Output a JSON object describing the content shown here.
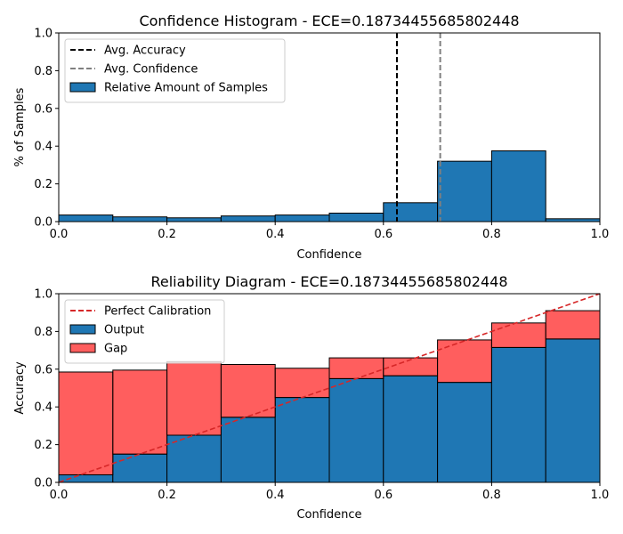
{
  "chart_data": [
    {
      "type": "bar",
      "title": "Confidence Histogram -  ECE=0.18734455685802448",
      "xlabel": "Confidence",
      "ylabel": "% of Samples",
      "xlim": [
        0,
        1
      ],
      "ylim": [
        0,
        1
      ],
      "xticks": [
        "0.0",
        "0.2",
        "0.4",
        "0.6",
        "0.8",
        "1.0"
      ],
      "yticks": [
        "0.0",
        "0.2",
        "0.4",
        "0.6",
        "0.8",
        "1.0"
      ],
      "bin_edges": [
        0,
        0.1,
        0.2,
        0.3,
        0.4,
        0.5,
        0.6,
        0.7,
        0.8,
        0.9,
        1.0
      ],
      "series": [
        {
          "name": "Relative Amount of Samples",
          "color": "#1f77b4",
          "values": [
            0.035,
            0.025,
            0.02,
            0.03,
            0.035,
            0.045,
            0.1,
            0.32,
            0.375,
            0.015
          ]
        }
      ],
      "vlines": [
        {
          "name": "Avg. Accuracy",
          "x": 0.625,
          "color": "#000000"
        },
        {
          "name": "Avg. Confidence",
          "x": 0.705,
          "color": "#808080"
        }
      ],
      "legend": "top-left"
    },
    {
      "type": "bar",
      "title": "Reliability Diagram -  ECE=0.18734455685802448",
      "xlabel": "Confidence",
      "ylabel": "Accuracy",
      "xlim": [
        0,
        1
      ],
      "ylim": [
        0,
        1
      ],
      "xticks": [
        "0.0",
        "0.2",
        "0.4",
        "0.6",
        "0.8",
        "1.0"
      ],
      "yticks": [
        "0.0",
        "0.2",
        "0.4",
        "0.6",
        "0.8",
        "1.0"
      ],
      "bin_edges": [
        0,
        0.1,
        0.2,
        0.3,
        0.4,
        0.5,
        0.6,
        0.7,
        0.8,
        0.9,
        1.0
      ],
      "series": [
        {
          "name": "Output",
          "color": "#1f77b4",
          "values": [
            0.04,
            0.15,
            0.25,
            0.345,
            0.45,
            0.55,
            0.565,
            0.53,
            0.715,
            0.76
          ]
        },
        {
          "name": "Gap",
          "color": "#ff0000",
          "bottom": [
            0.04,
            0.15,
            0.25,
            0.345,
            0.45,
            0.55,
            0.565,
            0.53,
            0.715,
            0.76
          ],
          "top": [
            0.585,
            0.595,
            0.64,
            0.625,
            0.605,
            0.66,
            0.66,
            0.755,
            0.845,
            0.91
          ]
        }
      ],
      "reference_line": {
        "name": "Perfect Calibration",
        "x": [
          0,
          1
        ],
        "y": [
          0,
          1
        ],
        "color": "#d62728"
      },
      "legend": "top-left"
    }
  ]
}
